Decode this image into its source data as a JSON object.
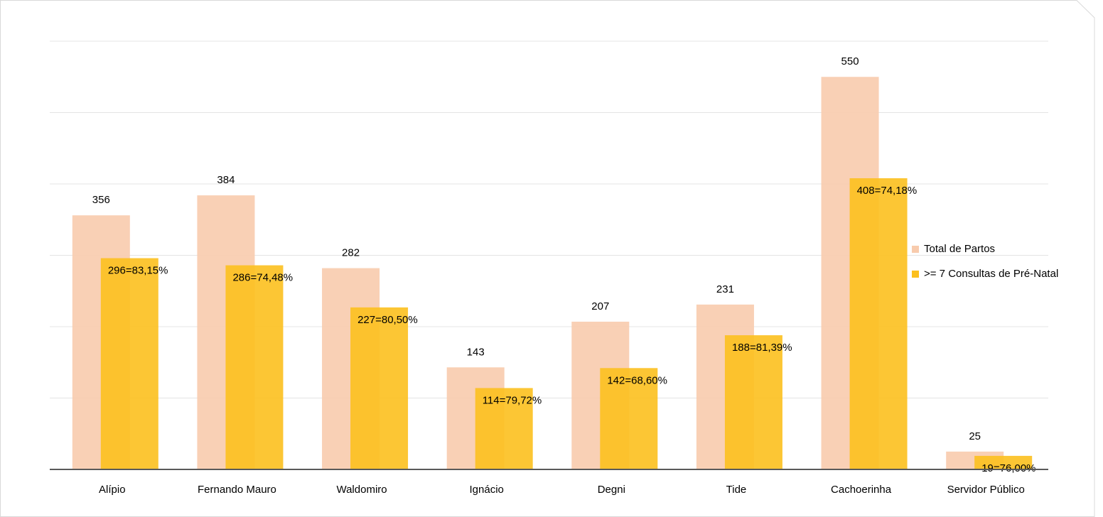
{
  "chart_data": {
    "type": "bar",
    "categories": [
      "Alípio",
      "Fernando Mauro",
      "Waldomiro",
      "Ignácio",
      "Degni",
      "Tide",
      "Cachoerinha",
      "Servidor Público"
    ],
    "series": [
      {
        "name": "Total de Partos",
        "color": "#f8cbad",
        "values": [
          356,
          384,
          282,
          143,
          207,
          231,
          550,
          25
        ]
      },
      {
        "name": ">= 7 Consultas de Pré-Natal",
        "color": "#fcc01e",
        "values": [
          296,
          286,
          227,
          114,
          142,
          188,
          408,
          19
        ],
        "value_labels": [
          "296=83,15%",
          "286=74,48%",
          "227=80,50%",
          "114=79,72%",
          "142=68,60%",
          "188=81,39%",
          "408=74,18%",
          "19=76,00%"
        ]
      }
    ],
    "ylim": [
      0,
      600
    ],
    "yticks": [
      0,
      100,
      200,
      300,
      400,
      500,
      600
    ],
    "grid": true,
    "legend": "right"
  }
}
